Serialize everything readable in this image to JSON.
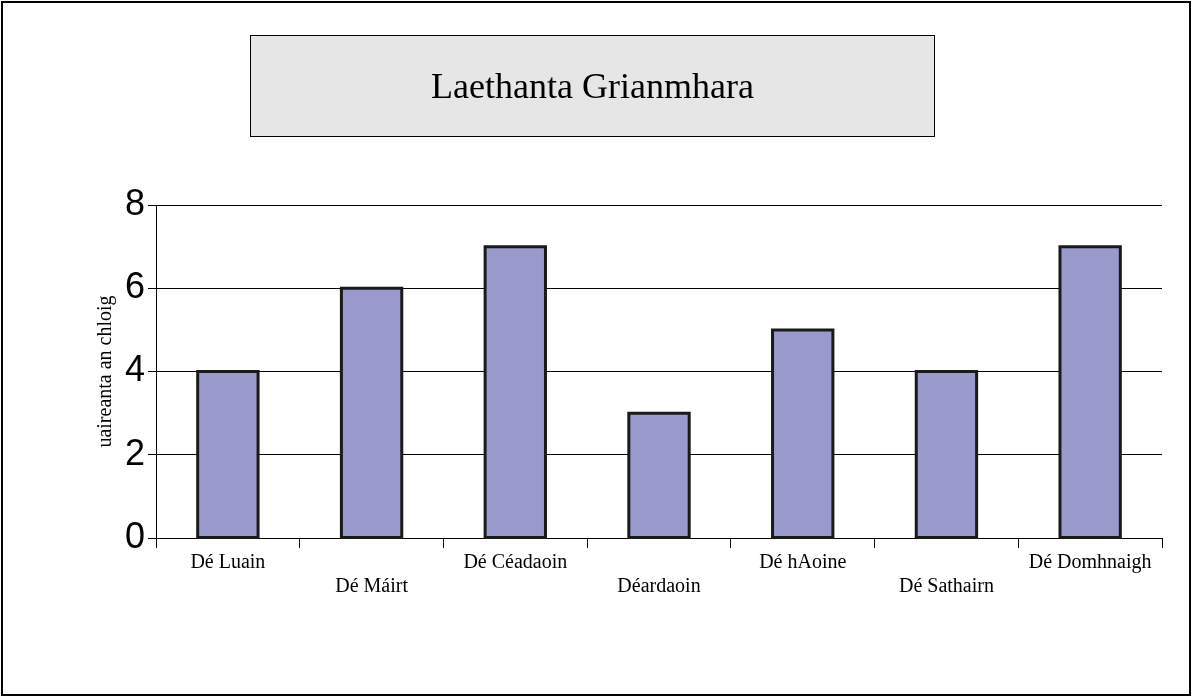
{
  "chart_data": {
    "type": "bar",
    "title": "Laethanta Grianmhara",
    "ylabel": "uaireanta an chloig",
    "categories": [
      "Dé Luain",
      "Dé Máirt",
      "Dé Céadaoin",
      "Déardaoin",
      "Dé hAoine",
      "Dé Sathairn",
      "Dé Domhnaigh"
    ],
    "values": [
      4,
      6,
      7,
      3,
      5,
      4,
      7
    ],
    "color": "#9999cc",
    "ylim": [
      0,
      8
    ],
    "yticks": [
      0,
      2,
      4,
      6,
      8
    ],
    "grid": "y",
    "legend": false
  }
}
